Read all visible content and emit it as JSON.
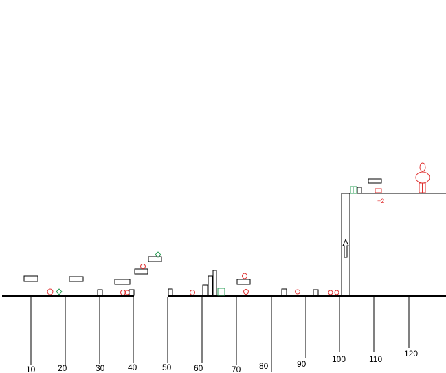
{
  "ruler": {
    "labels": [
      "10",
      "20",
      "30",
      "40",
      "50",
      "60",
      "70",
      "80",
      "90",
      "100",
      "110",
      "120"
    ]
  },
  "bonus_text": "+2",
  "colors": {
    "ground": "#000000",
    "enemy": "#e03030",
    "gem": "#2a9d55",
    "block": "#000000"
  }
}
